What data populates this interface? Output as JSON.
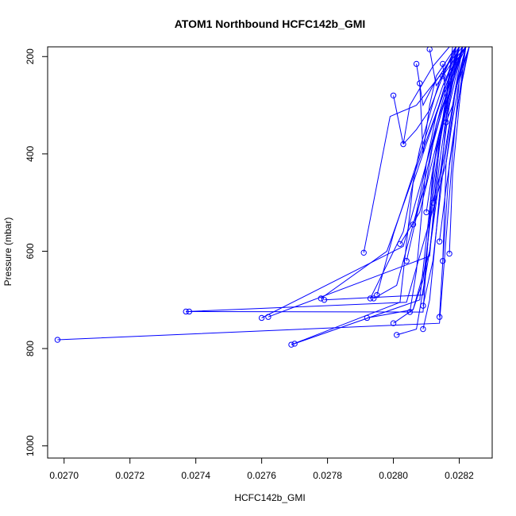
{
  "chart_data": {
    "type": "line",
    "title": "ATOM1 Northbound HCFC142b_GMI",
    "xlabel": "HCFC142b_GMI",
    "ylabel": "Pressure (mbar)",
    "xlim": [
      0.02695,
      0.0283
    ],
    "ylim": [
      1025,
      180
    ],
    "y_axis_inverted": true,
    "x_ticks": [
      "0.0270",
      "0.0272",
      "0.0274",
      "0.0276",
      "0.0278",
      "0.0280",
      "0.0282"
    ],
    "x_tick_values": [
      0.027,
      0.0272,
      0.0274,
      0.0276,
      0.0278,
      0.028,
      0.0282
    ],
    "y_ticks": [
      "200",
      "400",
      "600",
      "800",
      "1000"
    ],
    "y_tick_values": [
      200,
      400,
      600,
      800,
      1000
    ],
    "color": "#0000ff",
    "grid": false,
    "series": [
      {
        "x": [
          0.02698,
          0.02814,
          0.02818,
          0.0282,
          0.02822
        ],
        "y": [
          782,
          748,
          400,
          250,
          180
        ]
      },
      {
        "x": [
          0.02737,
          0.02804,
          0.02816,
          0.02819,
          0.02821
        ],
        "y": [
          724,
          705,
          420,
          260,
          180
        ]
      },
      {
        "x": [
          0.02738,
          0.02809,
          0.02812,
          0.02818,
          0.02821
        ],
        "y": [
          724,
          725,
          430,
          250,
          180
        ]
      },
      {
        "x": [
          0.0276,
          0.02803,
          0.0281,
          0.02817,
          0.02821
        ],
        "y": [
          737,
          590,
          420,
          260,
          180
        ]
      },
      {
        "x": [
          0.02762,
          0.02811,
          0.02814,
          0.02818,
          0.02822
        ],
        "y": [
          735,
          610,
          380,
          240,
          180
        ]
      },
      {
        "x": [
          0.02769,
          0.02802,
          0.02806,
          0.02815,
          0.0282
        ],
        "y": [
          792,
          705,
          460,
          280,
          180
        ]
      },
      {
        "x": [
          0.0277,
          0.02808,
          0.02813,
          0.02818,
          0.02822
        ],
        "y": [
          790,
          700,
          390,
          240,
          180
        ]
      },
      {
        "x": [
          0.02778,
          0.02798,
          0.02808,
          0.02816,
          0.0282
        ],
        "y": [
          697,
          600,
          410,
          260,
          180
        ]
      },
      {
        "x": [
          0.02779,
          0.02809,
          0.02812,
          0.02816,
          0.0282
        ],
        "y": [
          700,
          690,
          470,
          280,
          180
        ]
      },
      {
        "x": [
          0.02791,
          0.02799,
          0.02807,
          0.02814,
          0.0282
        ],
        "y": [
          603,
          323,
          300,
          240,
          180
        ]
      },
      {
        "x": [
          0.02792,
          0.02806,
          0.02811,
          0.02817,
          0.02821
        ],
        "y": [
          737,
          720,
          600,
          300,
          180
        ]
      },
      {
        "x": [
          0.02793,
          0.02803,
          0.02808,
          0.02814,
          0.02819
        ],
        "y": [
          697,
          560,
          390,
          250,
          180
        ]
      },
      {
        "x": [
          0.02794,
          0.02801,
          0.02807,
          0.02813,
          0.02819
        ],
        "y": [
          697,
          670,
          520,
          320,
          180
        ]
      },
      {
        "x": [
          0.02795,
          0.028,
          0.0281,
          0.02815,
          0.0282
        ],
        "y": [
          690,
          565,
          360,
          260,
          180
        ]
      },
      {
        "x": [
          0.028,
          0.02806,
          0.02809,
          0.02813,
          0.02818
        ],
        "y": [
          748,
          720,
          660,
          440,
          180
        ]
      },
      {
        "x": [
          0.02801,
          0.02807,
          0.02811,
          0.02814,
          0.02819
        ],
        "y": [
          772,
          760,
          600,
          420,
          180
        ]
      },
      {
        "x": [
          0.028,
          0.02803,
          0.02805,
          0.02812,
          0.02817
        ],
        "y": [
          280,
          380,
          300,
          220,
          180
        ]
      },
      {
        "x": [
          0.02802,
          0.02808,
          0.02812,
          0.02816,
          0.0282
        ],
        "y": [
          585,
          520,
          410,
          300,
          180
        ]
      },
      {
        "x": [
          0.02803,
          0.02807,
          0.02811,
          0.02815,
          0.02819
        ],
        "y": [
          380,
          350,
          310,
          240,
          180
        ]
      },
      {
        "x": [
          0.02804,
          0.02808,
          0.02812,
          0.02816,
          0.0282
        ],
        "y": [
          620,
          500,
          380,
          280,
          180
        ]
      },
      {
        "x": [
          0.02805,
          0.02807,
          0.0281,
          0.02815,
          0.0282
        ],
        "y": [
          725,
          640,
          420,
          290,
          180
        ]
      },
      {
        "x": [
          0.02806,
          0.0281,
          0.02813,
          0.02817,
          0.02821
        ],
        "y": [
          545,
          460,
          340,
          260,
          180
        ]
      },
      {
        "x": [
          0.02807,
          0.02809,
          0.02812,
          0.02816,
          0.02821
        ],
        "y": [
          215,
          300,
          260,
          220,
          180
        ]
      },
      {
        "x": [
          0.02808,
          0.02809,
          0.02811,
          0.02813,
          0.02819
        ],
        "y": [
          255,
          400,
          300,
          240,
          180
        ]
      },
      {
        "x": [
          0.02809,
          0.02812,
          0.02815,
          0.02818,
          0.02822
        ],
        "y": [
          712,
          620,
          440,
          300,
          180
        ]
      },
      {
        "x": [
          0.02809,
          0.02811,
          0.02813,
          0.02816,
          0.0282
        ],
        "y": [
          760,
          700,
          560,
          330,
          180
        ]
      },
      {
        "x": [
          0.0281,
          0.02812,
          0.02814,
          0.02817,
          0.02821
        ],
        "y": [
          520,
          430,
          360,
          280,
          180
        ]
      },
      {
        "x": [
          0.02811,
          0.02813,
          0.02815,
          0.02818,
          0.02822
        ],
        "y": [
          185,
          260,
          240,
          210,
          180
        ]
      },
      {
        "x": [
          0.02812,
          0.02815,
          0.02817,
          0.02819,
          0.02822
        ],
        "y": [
          500,
          420,
          340,
          260,
          180
        ]
      },
      {
        "x": [
          0.02814,
          0.02816,
          0.02818,
          0.0282,
          0.02823
        ],
        "y": [
          580,
          470,
          380,
          280,
          180
        ]
      },
      {
        "x": [
          0.02815,
          0.02816,
          0.02818,
          0.0282,
          0.02823
        ],
        "y": [
          620,
          420,
          330,
          250,
          180
        ]
      },
      {
        "x": [
          0.02815,
          0.02816,
          0.02817,
          0.02819,
          0.02822
        ],
        "y": [
          215,
          300,
          240,
          210,
          180
        ]
      },
      {
        "x": [
          0.02816,
          0.02818,
          0.02819,
          0.02821,
          0.02823
        ],
        "y": [
          335,
          300,
          260,
          220,
          180
        ]
      },
      {
        "x": [
          0.02817,
          0.02818,
          0.0282,
          0.02821,
          0.02823
        ],
        "y": [
          605,
          440,
          300,
          240,
          180
        ]
      },
      {
        "x": [
          0.02815,
          0.02816,
          0.02817,
          0.02819,
          0.02822
        ],
        "y": [
          240,
          250,
          230,
          210,
          180
        ]
      },
      {
        "x": [
          0.02814,
          0.02815,
          0.02817,
          0.0282,
          0.02822
        ],
        "y": [
          735,
          620,
          420,
          280,
          180
        ]
      }
    ]
  }
}
